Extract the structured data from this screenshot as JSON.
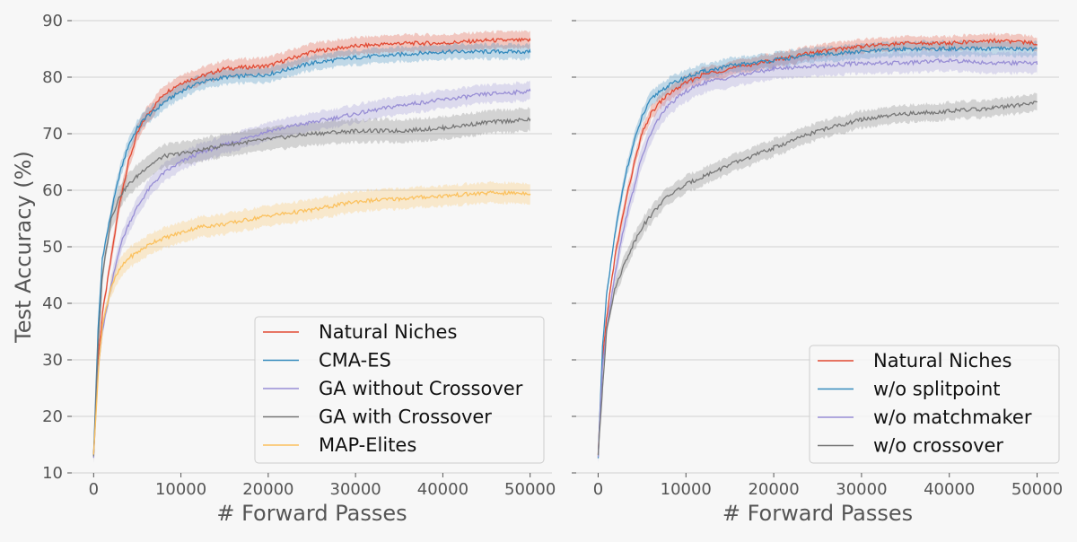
{
  "chart_data": [
    {
      "type": "line",
      "ylabel": "Test Accuracy (%)",
      "xlabel": "# Forward Passes",
      "xlim": [
        -2500,
        52500
      ],
      "ylim": [
        10,
        90
      ],
      "xticks": [
        0,
        10000,
        20000,
        30000,
        40000,
        50000
      ],
      "yticks": [
        10,
        20,
        30,
        40,
        50,
        60,
        70,
        80,
        90
      ],
      "grid": "horizontal",
      "legend": "bottom-right",
      "series": [
        {
          "name": "Natural Niches",
          "color": "#e24a33",
          "x": [
            0,
            500,
            1000,
            2000,
            3000,
            4000,
            5000,
            6000,
            7000,
            8000,
            10000,
            12000,
            15000,
            20000,
            25000,
            30000,
            35000,
            40000,
            45000,
            50000
          ],
          "y": [
            13,
            30,
            38,
            48,
            58,
            65,
            70,
            73,
            75,
            77,
            79,
            80,
            81.5,
            82,
            84.5,
            85.5,
            86,
            86,
            86.5,
            86.5
          ],
          "band": 1.5
        },
        {
          "name": "CMA-ES",
          "color": "#348abd",
          "x": [
            0,
            500,
            1000,
            2000,
            3000,
            4000,
            5000,
            6000,
            7000,
            8000,
            10000,
            12000,
            15000,
            20000,
            25000,
            30000,
            35000,
            40000,
            45000,
            50000
          ],
          "y": [
            13,
            35,
            48,
            56,
            63,
            68,
            71,
            73,
            74,
            75.5,
            77.5,
            79,
            80,
            80.5,
            82.5,
            83.5,
            84,
            84.5,
            84.5,
            84.5
          ],
          "band": 1.3
        },
        {
          "name": "GA without Crossover",
          "color": "#988ed5",
          "x": [
            0,
            500,
            1000,
            2000,
            3000,
            4000,
            5000,
            6000,
            7000,
            8000,
            10000,
            12000,
            15000,
            20000,
            25000,
            30000,
            35000,
            40000,
            45000,
            50000
          ],
          "y": [
            13,
            28,
            35,
            43,
            50,
            54,
            57,
            59.5,
            61.5,
            63,
            65,
            66.5,
            68,
            70.5,
            72,
            73.5,
            75,
            76,
            77,
            77.5
          ],
          "band": 1.6
        },
        {
          "name": "GA with Crossover",
          "color": "#777777",
          "x": [
            0,
            500,
            1000,
            2000,
            3000,
            4000,
            5000,
            6000,
            7000,
            8000,
            10000,
            12000,
            15000,
            20000,
            25000,
            30000,
            35000,
            40000,
            45000,
            50000
          ],
          "y": [
            13,
            32,
            45,
            55,
            59,
            61,
            62.5,
            64,
            65,
            66,
            66.5,
            67,
            68,
            69,
            70,
            70.5,
            70.5,
            71,
            72,
            72.5
          ],
          "band": 2.0
        },
        {
          "name": "MAP-Elites",
          "color": "#fbc15e",
          "x": [
            0,
            500,
            1000,
            2000,
            3000,
            4000,
            5000,
            6000,
            7000,
            8000,
            10000,
            12000,
            15000,
            20000,
            25000,
            30000,
            35000,
            40000,
            45000,
            50000
          ],
          "y": [
            13,
            27,
            36,
            43,
            46,
            48,
            49,
            50,
            51,
            51.5,
            52.5,
            53.5,
            54,
            55.5,
            56.5,
            58,
            58.5,
            59,
            59.5,
            59.5
          ],
          "band": 1.8
        }
      ]
    },
    {
      "type": "line",
      "ylabel": "",
      "xlabel": "# Forward Passes",
      "xlim": [
        -2500,
        52500
      ],
      "ylim": [
        10,
        90
      ],
      "xticks": [
        0,
        10000,
        20000,
        30000,
        40000,
        50000
      ],
      "yticks": [
        10,
        20,
        30,
        40,
        50,
        60,
        70,
        80,
        90
      ],
      "grid": "horizontal",
      "legend": "bottom-right",
      "series": [
        {
          "name": "Natural Niches",
          "color": "#e24a33",
          "x": [
            0,
            500,
            1000,
            2000,
            3000,
            4000,
            5000,
            6000,
            7000,
            8000,
            10000,
            12000,
            15000,
            20000,
            25000,
            30000,
            35000,
            40000,
            45000,
            50000
          ],
          "y": [
            13,
            30,
            38,
            49,
            57,
            64,
            70,
            73.5,
            75.5,
            77,
            79,
            80.5,
            81.5,
            83,
            84.5,
            85.5,
            86,
            86,
            86.5,
            86
          ],
          "band": 1.2
        },
        {
          "name": "w/o splitpoint",
          "color": "#348abd",
          "x": [
            0,
            500,
            1000,
            2000,
            3000,
            4000,
            5000,
            6000,
            7000,
            8000,
            10000,
            12000,
            15000,
            20000,
            25000,
            30000,
            35000,
            40000,
            45000,
            50000
          ],
          "y": [
            13,
            32,
            42,
            53,
            62,
            68,
            73,
            76,
            77.5,
            78.5,
            80,
            81,
            82,
            83,
            84,
            84.5,
            85,
            85,
            85,
            85
          ],
          "band": 1.3
        },
        {
          "name": "w/o matchmaker",
          "color": "#988ed5",
          "x": [
            0,
            500,
            1000,
            2000,
            3000,
            4000,
            5000,
            6000,
            7000,
            8000,
            10000,
            12000,
            15000,
            20000,
            25000,
            30000,
            35000,
            40000,
            45000,
            50000
          ],
          "y": [
            13,
            29,
            36,
            46,
            54,
            60,
            66,
            70,
            73,
            75,
            77.5,
            79,
            80,
            81.5,
            82,
            82.5,
            82.5,
            83,
            82.5,
            82.5
          ],
          "band": 1.8
        },
        {
          "name": "w/o crossover",
          "color": "#777777",
          "x": [
            0,
            500,
            1000,
            2000,
            3000,
            4000,
            5000,
            6000,
            7000,
            8000,
            10000,
            12000,
            15000,
            20000,
            25000,
            30000,
            35000,
            40000,
            45000,
            50000
          ],
          "y": [
            13,
            25,
            36,
            43,
            47,
            50.5,
            53.5,
            55.5,
            57.5,
            59,
            61,
            62.5,
            64.5,
            67.5,
            70.5,
            72.5,
            73.5,
            74,
            74.5,
            75.5
          ],
          "band": 1.5
        }
      ]
    }
  ]
}
